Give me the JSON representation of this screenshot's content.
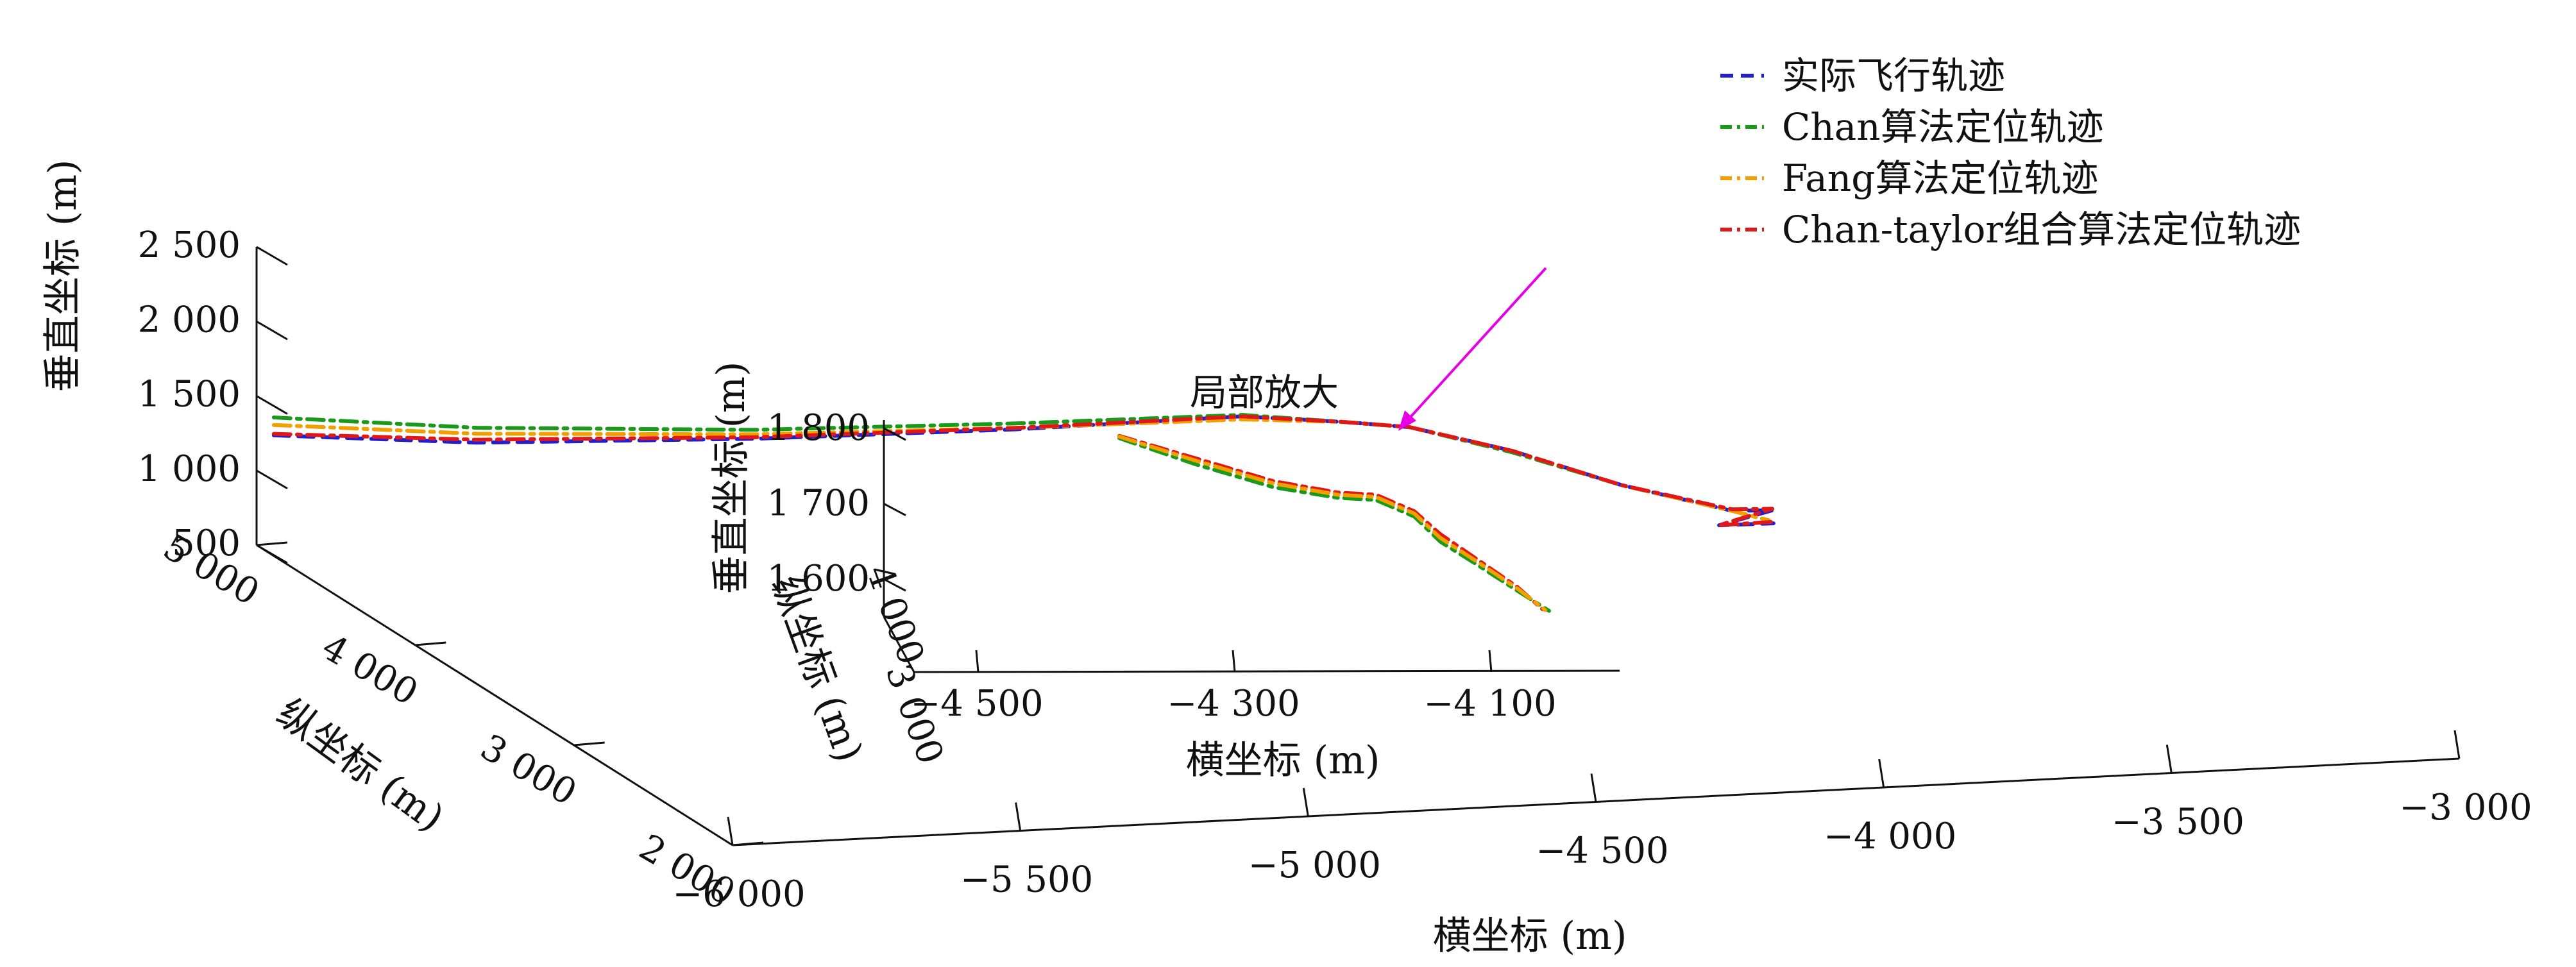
{
  "chart_data": {
    "type": "line",
    "projection": "3d",
    "title": "",
    "xlabel": "横坐标 (m)",
    "ylabel": "纵坐标 (m)",
    "zlabel": "垂直坐标 (m)",
    "xlim": [
      -6000,
      -3000
    ],
    "ylim": [
      2000,
      5000
    ],
    "zlim": [
      500,
      2500
    ],
    "x_ticks": [
      "−6 000",
      "−5 500",
      "−5 000",
      "−4 500",
      "−4 000",
      "−3 500",
      "−3 000"
    ],
    "y_ticks": [
      "2 000",
      "3 000",
      "4 000",
      "5 000"
    ],
    "z_ticks": [
      "500",
      "1 000",
      "1 500",
      "2 000",
      "2 500"
    ],
    "legend": {
      "position": "top-right",
      "entries": [
        {
          "label": "实际飞行轨迹",
          "color": "#1f1fd6",
          "style": "dashed"
        },
        {
          "label": "Chan算法定位轨迹",
          "color": "#1a9a1a",
          "style": "dashdot"
        },
        {
          "label": "Fang算法定位轨迹",
          "color": "#f2a000",
          "style": "dashdot"
        },
        {
          "label": "Chan-taylor组合算法定位轨迹",
          "color": "#e01818",
          "style": "dashdot"
        }
      ]
    },
    "annotation": "局部放大",
    "series": [
      {
        "name": "实际飞行轨迹",
        "points": [
          [
            -5970,
            5000,
            1230
          ],
          [
            -5700,
            4700,
            1330
          ],
          [
            -5300,
            4400,
            1480
          ],
          [
            -4900,
            4200,
            1600
          ],
          [
            -4550,
            4050,
            1720
          ],
          [
            -4400,
            3950,
            1720
          ],
          [
            -4300,
            3900,
            1700
          ],
          [
            -4150,
            3800,
            1580
          ],
          [
            -4000,
            3650,
            1420
          ],
          [
            -3850,
            3500,
            1320
          ],
          [
            -3780,
            3500,
            1310
          ],
          [
            -3900,
            3400,
            1300
          ],
          [
            -3800,
            3420,
            1280
          ]
        ]
      },
      {
        "name": "Chan算法定位轨迹",
        "points": [
          [
            -5970,
            5000,
            1350
          ],
          [
            -5700,
            4700,
            1430
          ],
          [
            -5300,
            4400,
            1540
          ],
          [
            -4900,
            4200,
            1640
          ],
          [
            -4550,
            4050,
            1730
          ],
          [
            -4400,
            3950,
            1720
          ],
          [
            -4300,
            3900,
            1700
          ],
          [
            -4150,
            3800,
            1570
          ],
          [
            -4000,
            3650,
            1420
          ],
          [
            -3850,
            3500,
            1320
          ],
          [
            -3800,
            3450,
            1280
          ]
        ]
      },
      {
        "name": "Fang算法定位轨迹",
        "points": [
          [
            -5970,
            5000,
            1300
          ],
          [
            -5700,
            4700,
            1390
          ],
          [
            -5300,
            4400,
            1510
          ],
          [
            -4900,
            4200,
            1610
          ],
          [
            -4550,
            4050,
            1700
          ],
          [
            -4400,
            3950,
            1720
          ],
          [
            -4300,
            3900,
            1700
          ],
          [
            -4150,
            3800,
            1580
          ],
          [
            -4000,
            3650,
            1420
          ],
          [
            -3850,
            3500,
            1320
          ],
          [
            -3800,
            3450,
            1280
          ]
        ]
      },
      {
        "name": "Chan-taylor组合算法定位轨迹",
        "points": [
          [
            -5970,
            5000,
            1240
          ],
          [
            -5700,
            4700,
            1350
          ],
          [
            -5300,
            4400,
            1490
          ],
          [
            -4900,
            4200,
            1610
          ],
          [
            -4550,
            4050,
            1720
          ],
          [
            -4400,
            3950,
            1720
          ],
          [
            -4300,
            3900,
            1700
          ],
          [
            -4150,
            3800,
            1580
          ],
          [
            -4000,
            3650,
            1420
          ],
          [
            -3850,
            3500,
            1330
          ],
          [
            -3780,
            3500,
            1320
          ],
          [
            -3900,
            3400,
            1300
          ],
          [
            -3800,
            3420,
            1290
          ]
        ]
      }
    ],
    "inset": {
      "xlabel": "横坐标 (m)",
      "ylabel": "纵坐标 (m)",
      "zlabel": "垂直坐标 (m)",
      "xlim": [
        -4550,
        -4000
      ],
      "x_ticks": [
        "−4 500",
        "−4 300",
        "−4 100"
      ],
      "y_ticks": [
        "4 000",
        "3 000"
      ],
      "z_ticks": [
        "1 800",
        "1 700",
        "1 600"
      ],
      "series": [
        {
          "name": "Chan-taylor组合算法定位轨迹",
          "points": [
            [
              -4390,
              1790
            ],
            [
              -4330,
              1760
            ],
            [
              -4270,
              1730
            ],
            [
              -4220,
              1715
            ],
            [
              -4190,
              1712
            ],
            [
              -4160,
              1690
            ],
            [
              -4140,
              1660
            ],
            [
              -4110,
              1625
            ],
            [
              -4080,
              1590
            ],
            [
              -4060,
              1560
            ]
          ]
        },
        {
          "name": "Chan算法定位轨迹",
          "points": [
            [
              -4390,
              1787
            ],
            [
              -4330,
              1752
            ],
            [
              -4270,
              1722
            ],
            [
              -4220,
              1708
            ],
            [
              -4190,
              1705
            ],
            [
              -4160,
              1683
            ],
            [
              -4140,
              1650
            ],
            [
              -4110,
              1618
            ],
            [
              -4080,
              1585
            ],
            [
              -4055,
              1558
            ]
          ]
        },
        {
          "name": "Fang算法定位轨迹",
          "points": [
            [
              -4390,
              1789
            ],
            [
              -4330,
              1757
            ],
            [
              -4270,
              1727
            ],
            [
              -4220,
              1712
            ],
            [
              -4190,
              1709
            ],
            [
              -4160,
              1687
            ],
            [
              -4140,
              1655
            ],
            [
              -4110,
              1622
            ],
            [
              -4080,
              1588
            ],
            [
              -4058,
              1559
            ]
          ]
        }
      ]
    }
  }
}
